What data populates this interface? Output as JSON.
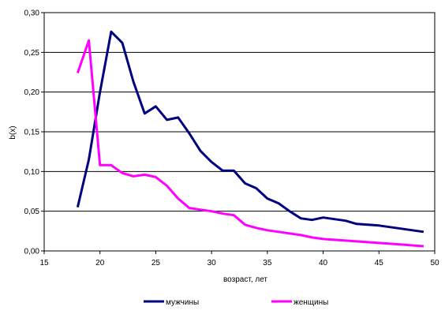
{
  "chart_data": {
    "type": "line",
    "xlabel": "возраст, лет",
    "ylabel": "b(x)",
    "xlim": [
      15,
      50
    ],
    "ylim": [
      0,
      0.3
    ],
    "xticks": [
      15,
      20,
      25,
      30,
      35,
      40,
      45,
      50
    ],
    "yticks": [
      0,
      0.05,
      0.1,
      0.15,
      0.2,
      0.25,
      0.3
    ],
    "xtick_labels": [
      "15",
      "20",
      "25",
      "30",
      "35",
      "40",
      "45",
      "50"
    ],
    "ytick_labels": [
      "0,00",
      "0,05",
      "0,10",
      "0,15",
      "0,20",
      "0,25",
      "0,30"
    ],
    "grid": "horizontal",
    "legend_position": "bottom",
    "series": [
      {
        "name": "мужчины",
        "color": "#000080",
        "x": [
          18,
          19,
          20,
          21,
          22,
          23,
          24,
          25,
          26,
          27,
          28,
          29,
          30,
          31,
          32,
          33,
          34,
          35,
          36,
          37,
          38,
          39,
          40,
          41,
          42,
          43,
          44,
          45,
          46,
          47,
          48,
          49
        ],
        "y": [
          0.055,
          0.115,
          0.2,
          0.276,
          0.262,
          0.213,
          0.173,
          0.182,
          0.165,
          0.168,
          0.148,
          0.126,
          0.112,
          0.101,
          0.101,
          0.085,
          0.079,
          0.066,
          0.06,
          0.05,
          0.041,
          0.039,
          0.042,
          0.04,
          0.038,
          0.034,
          0.033,
          0.032,
          0.03,
          0.028,
          0.026,
          0.024
        ]
      },
      {
        "name": "женщины",
        "color": "#ff00ff",
        "x": [
          18,
          19,
          20,
          21,
          22,
          23,
          24,
          25,
          26,
          27,
          28,
          29,
          30,
          31,
          32,
          33,
          34,
          35,
          36,
          37,
          38,
          39,
          40,
          41,
          42,
          43,
          44,
          45,
          46,
          47,
          48,
          49
        ],
        "y": [
          0.224,
          0.265,
          0.108,
          0.108,
          0.098,
          0.094,
          0.096,
          0.093,
          0.082,
          0.066,
          0.054,
          0.052,
          0.05,
          0.047,
          0.045,
          0.033,
          0.029,
          0.026,
          0.024,
          0.022,
          0.02,
          0.017,
          0.015,
          0.014,
          0.013,
          0.012,
          0.011,
          0.01,
          0.009,
          0.008,
          0.007,
          0.006
        ]
      }
    ]
  }
}
